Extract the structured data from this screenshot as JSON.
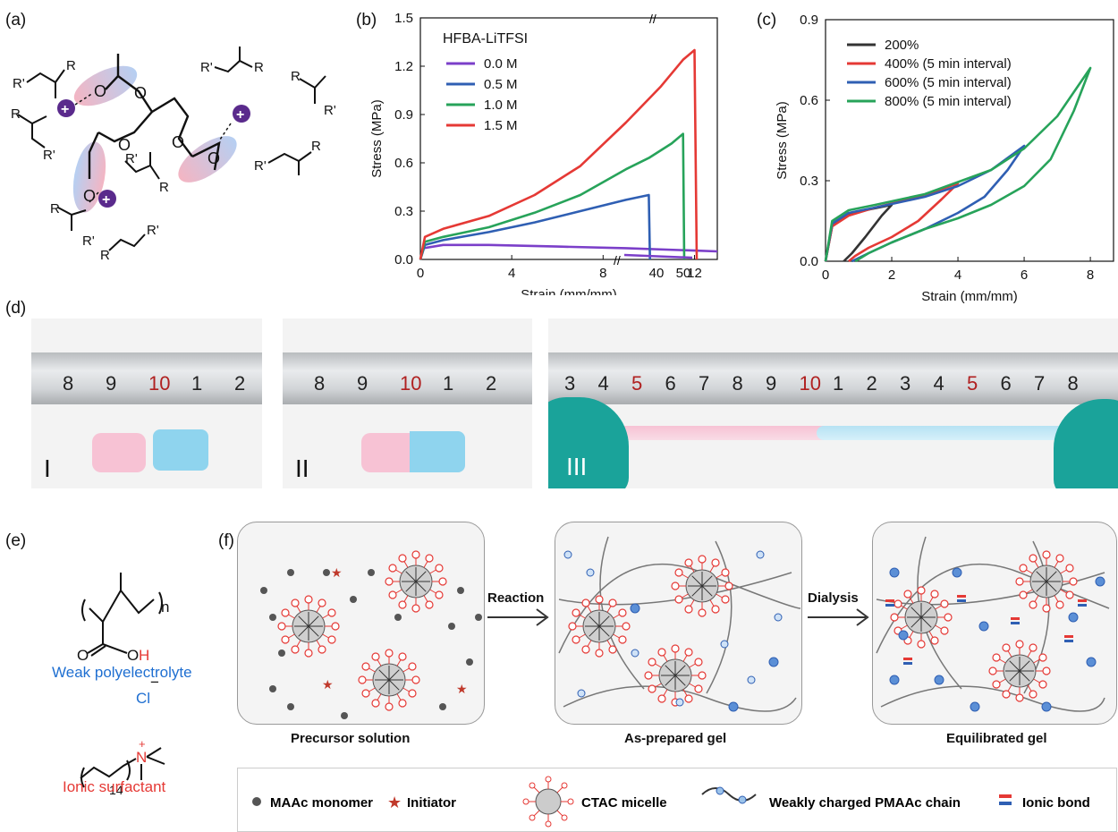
{
  "panels": {
    "a": "(a)",
    "b": "(b)",
    "c": "(c)",
    "d": "(d)",
    "e": "(e)",
    "f": "(f)"
  },
  "panel_a": {
    "ester_left": "R'",
    "ester_right": "R",
    "oxygen": "O",
    "cation": "+"
  },
  "chart_data": [
    {
      "type": "line",
      "panel": "b",
      "legend_title": "HFBA-LiTFSI",
      "xlabel": "Strain (mm/mm)",
      "ylabel": "Stress (MPa)",
      "xlim": [
        0,
        13
      ],
      "ylim": [
        0,
        1.5
      ],
      "x_ticks": [
        "0",
        "4",
        "8",
        "12"
      ],
      "x_break_ticks": [
        "40",
        "50"
      ],
      "y_ticks": [
        "0.0",
        "0.3",
        "0.6",
        "0.9",
        "1.2",
        "1.5"
      ],
      "axis_break": true,
      "legend_position": "top-left",
      "series": [
        {
          "name": "0.0 M",
          "color": "#7b3fc9",
          "x": [
            0,
            0.15,
            1,
            3,
            6,
            9,
            12,
            13
          ],
          "y": [
            0,
            0.07,
            0.09,
            0.09,
            0.08,
            0.07,
            0.055,
            0.05
          ]
        },
        {
          "name": "0.5 M",
          "color": "#2f5fb3",
          "x": [
            0,
            0.2,
            1,
            3,
            5,
            7,
            9,
            10,
            10.05
          ],
          "y": [
            0,
            0.09,
            0.12,
            0.17,
            0.23,
            0.3,
            0.37,
            0.4,
            0
          ]
        },
        {
          "name": "1.0 M",
          "color": "#27a35a",
          "x": [
            0,
            0.2,
            1,
            3,
            5,
            7,
            8,
            9,
            10,
            11,
            11.5,
            11.55
          ],
          "y": [
            0,
            0.11,
            0.14,
            0.2,
            0.29,
            0.4,
            0.48,
            0.56,
            0.63,
            0.72,
            0.78,
            0
          ]
        },
        {
          "name": "1.5 M",
          "color": "#e53935",
          "x": [
            0,
            0.2,
            1,
            3,
            5,
            7,
            9,
            10.5,
            11.5,
            12,
            12.1
          ],
          "y": [
            0,
            0.14,
            0.19,
            0.27,
            0.4,
            0.58,
            0.85,
            1.07,
            1.24,
            1.3,
            0
          ]
        }
      ]
    },
    {
      "type": "line",
      "panel": "c",
      "xlabel": "Strain (mm/mm)",
      "ylabel": "Stress (MPa)",
      "xlim": [
        0,
        8.7
      ],
      "ylim": [
        0,
        0.9
      ],
      "x_ticks": [
        "0",
        "2",
        "4",
        "6",
        "8"
      ],
      "y_ticks": [
        "0.0",
        "0.3",
        "0.6",
        "0.9"
      ],
      "legend_position": "top-left",
      "series": [
        {
          "name": "200%",
          "color": "#333333",
          "x": [
            0,
            0.2,
            0.6,
            1.2,
            2,
            1.7,
            1.2,
            0.8,
            0.55
          ],
          "y": [
            0,
            0.13,
            0.17,
            0.19,
            0.21,
            0.17,
            0.09,
            0.03,
            0
          ]
        },
        {
          "name": "400% (5 min interval)",
          "color": "#e53935",
          "x": [
            0,
            0.2,
            0.7,
            1.5,
            2.5,
            3.3,
            4,
            3.5,
            2.8,
            2,
            1.3,
            0.9,
            0.7
          ],
          "y": [
            0,
            0.13,
            0.17,
            0.2,
            0.23,
            0.26,
            0.29,
            0.23,
            0.15,
            0.09,
            0.05,
            0.02,
            0
          ]
        },
        {
          "name": "600% (5 min interval)",
          "color": "#2f5fb3",
          "x": [
            0,
            0.2,
            0.7,
            1.5,
            3,
            4,
            5,
            6,
            5.5,
            4.8,
            4,
            3,
            2,
            1.3,
            0.8
          ],
          "y": [
            0,
            0.14,
            0.18,
            0.2,
            0.24,
            0.28,
            0.34,
            0.43,
            0.34,
            0.24,
            0.18,
            0.12,
            0.07,
            0.03,
            0
          ]
        },
        {
          "name": "800% (5 min interval)",
          "color": "#27a35a",
          "x": [
            0,
            0.2,
            0.7,
            1.5,
            3,
            5,
            6,
            7,
            8,
            7.5,
            6.8,
            6,
            5,
            4,
            3,
            2,
            1.3,
            0.9
          ],
          "y": [
            0,
            0.15,
            0.19,
            0.21,
            0.25,
            0.34,
            0.42,
            0.54,
            0.72,
            0.56,
            0.38,
            0.28,
            0.21,
            0.16,
            0.12,
            0.07,
            0.03,
            0
          ]
        }
      ]
    }
  ],
  "panel_d": {
    "photos": [
      {
        "label": "I",
        "ruler_ticks": [
          "8",
          "9",
          "10",
          "1",
          "2"
        ],
        "unit": "mm"
      },
      {
        "label": "II",
        "ruler_ticks": [
          "8",
          "9",
          "10",
          "1",
          "2"
        ],
        "unit": "mm"
      },
      {
        "label": "III",
        "ruler_ticks": [
          "3",
          "4",
          "5",
          "6",
          "7",
          "8",
          "9",
          "10",
          "1",
          "2",
          "3",
          "4",
          "5",
          "6",
          "7",
          "8"
        ],
        "unit": "mm"
      }
    ],
    "colors": {
      "pink": "#f7c2d4",
      "blue": "#8fd4ee",
      "glove": "#1aa39a"
    }
  },
  "panel_e": {
    "subscript_n": "n",
    "carboxyl_o": "O",
    "hydroxyl": "OH",
    "polymer_label": "Weak polyelectrolyte",
    "chloride": "Cl",
    "anion_charge": "−",
    "nitrogen": "N",
    "cation_charge": "+",
    "subscript_14": "14",
    "surfactant_label": "Ionic surfactant",
    "colors": {
      "blue": "#1f6fd1",
      "red": "#e53935"
    }
  },
  "panel_f": {
    "steps": [
      {
        "caption": "Precursor solution"
      },
      {
        "caption": "As-prepared gel"
      },
      {
        "caption": "Equilibrated gel"
      }
    ],
    "arrows": [
      "Reaction",
      "Dialysis"
    ],
    "legend": [
      {
        "label": "MAAc monomer",
        "icon": "dot-icon"
      },
      {
        "label": "Initiator",
        "icon": "star-icon"
      },
      {
        "label": "CTAC micelle",
        "icon": "micelle-icon"
      },
      {
        "label": "Weakly charged PMAAc chain",
        "icon": "chain-icon"
      },
      {
        "label": "Ionic bond",
        "icon": "ionic-bond-icon"
      }
    ],
    "symbols": {
      "star": "★",
      "minus": "−"
    }
  }
}
